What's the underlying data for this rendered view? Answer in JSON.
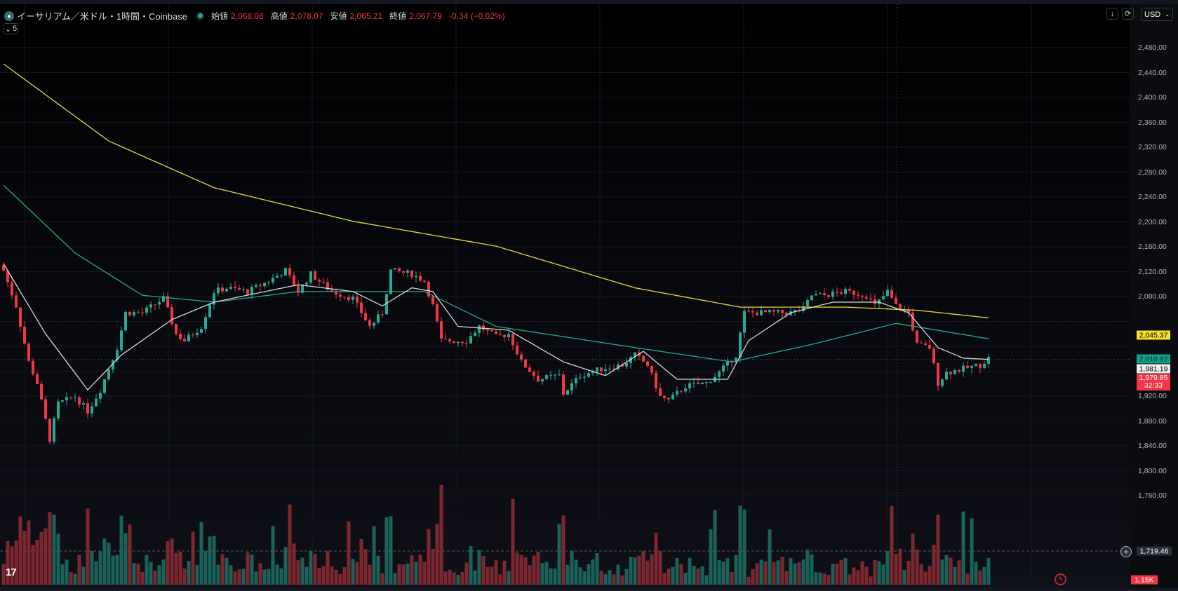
{
  "header": {
    "symbol": "イーサリアム／米ドル・1時間・Coinbase",
    "open_label": "始値",
    "open": "2,068.08",
    "high_label": "高値",
    "high": "2,078.07",
    "low_label": "安値",
    "low": "2,065.21",
    "close_label": "終値",
    "close": "2,067.79",
    "change": "-0.34 (−0.02%)",
    "indicators_count": "5",
    "currency": "USD"
  },
  "axis_ticks": [
    "2,480.00",
    "2,440.00",
    "2,400.00",
    "2,360.00",
    "2,320.00",
    "2,280.00",
    "2,240.00",
    "2,200.00",
    "2,160.00",
    "2,120.00",
    "2,080.00",
    "1,920.00",
    "1,880.00",
    "1,840.00",
    "1,800.00",
    "1,760.00"
  ],
  "price_labels": {
    "ma200": "2,045.37",
    "ma100": "2,010.82",
    "ma20": "1,981.19",
    "last": "1,979.85",
    "countdown": "32:33",
    "crosshair": "1,719.46",
    "volume": "1.15K"
  },
  "colors": {
    "up": "#22ab94",
    "down": "#f23645",
    "ma200": "#e8d83a",
    "ma100": "#1fa89a",
    "ma20": "#d8d8d8"
  },
  "chart_data": {
    "type": "candlestick",
    "title": "ETH/USD 1h Coinbase",
    "ylim": [
      1720,
      2500
    ],
    "bars": 235,
    "close_waypoints": [
      [
        0,
        2122
      ],
      [
        3,
        2065
      ],
      [
        6,
        1975
      ],
      [
        8,
        1941
      ],
      [
        11,
        1851
      ],
      [
        13,
        1908
      ],
      [
        17,
        1919
      ],
      [
        20,
        1896
      ],
      [
        23,
        1930
      ],
      [
        27,
        1998
      ],
      [
        29,
        2054
      ],
      [
        33,
        2054
      ],
      [
        38,
        2077
      ],
      [
        41,
        2020
      ],
      [
        43,
        2009
      ],
      [
        47,
        2032
      ],
      [
        50,
        2088
      ],
      [
        53,
        2094
      ],
      [
        58,
        2088
      ],
      [
        63,
        2105
      ],
      [
        67,
        2122
      ],
      [
        70,
        2088
      ],
      [
        73,
        2116
      ],
      [
        78,
        2088
      ],
      [
        83,
        2077
      ],
      [
        87,
        2032
      ],
      [
        90,
        2054
      ],
      [
        92,
        2122
      ],
      [
        97,
        2116
      ],
      [
        100,
        2105
      ],
      [
        102,
        2065
      ],
      [
        104,
        2009
      ],
      [
        110,
        2009
      ],
      [
        113,
        2032
      ],
      [
        117,
        2015
      ],
      [
        120,
        2020
      ],
      [
        123,
        1975
      ],
      [
        127,
        1947
      ],
      [
        132,
        1953
      ],
      [
        133,
        1924
      ],
      [
        137,
        1953
      ],
      [
        142,
        1964
      ],
      [
        147,
        1970
      ],
      [
        150,
        1986
      ],
      [
        153,
        1970
      ],
      [
        156,
        1919
      ],
      [
        158,
        1913
      ],
      [
        162,
        1936
      ],
      [
        167,
        1941
      ],
      [
        170,
        1958
      ],
      [
        174,
        1986
      ],
      [
        176,
        2054
      ],
      [
        180,
        2054
      ],
      [
        187,
        2054
      ],
      [
        190,
        2060
      ],
      [
        192,
        2082
      ],
      [
        195,
        2082
      ],
      [
        200,
        2088
      ],
      [
        205,
        2082
      ],
      [
        207,
        2065
      ],
      [
        210,
        2088
      ],
      [
        212,
        2065
      ],
      [
        215,
        2054
      ],
      [
        217,
        2003
      ],
      [
        220,
        1998
      ],
      [
        222,
        1941
      ],
      [
        224,
        1958
      ],
      [
        228,
        1964
      ],
      [
        232,
        1970
      ],
      [
        234,
        1981
      ]
    ],
    "ma200_waypoints": [
      [
        0,
        2454
      ],
      [
        25,
        2330
      ],
      [
        50,
        2255
      ],
      [
        83,
        2201
      ],
      [
        117,
        2161
      ],
      [
        150,
        2094
      ],
      [
        175,
        2063
      ],
      [
        200,
        2063
      ],
      [
        217,
        2058
      ],
      [
        235,
        2045
      ]
    ],
    "ma100_waypoints": [
      [
        0,
        2259
      ],
      [
        17,
        2150
      ],
      [
        33,
        2082
      ],
      [
        50,
        2071
      ],
      [
        70,
        2088
      ],
      [
        100,
        2088
      ],
      [
        117,
        2032
      ],
      [
        150,
        1998
      ],
      [
        173,
        1975
      ],
      [
        192,
        2003
      ],
      [
        212,
        2037
      ],
      [
        235,
        2011
      ]
    ],
    "ma20_waypoints": [
      [
        0,
        2133
      ],
      [
        10,
        2020
      ],
      [
        20,
        1930
      ],
      [
        28,
        1986
      ],
      [
        40,
        2043
      ],
      [
        50,
        2071
      ],
      [
        70,
        2099
      ],
      [
        83,
        2088
      ],
      [
        90,
        2065
      ],
      [
        97,
        2094
      ],
      [
        102,
        2088
      ],
      [
        108,
        2032
      ],
      [
        120,
        2026
      ],
      [
        133,
        1975
      ],
      [
        143,
        1953
      ],
      [
        152,
        1992
      ],
      [
        160,
        1947
      ],
      [
        172,
        1947
      ],
      [
        177,
        2009
      ],
      [
        187,
        2054
      ],
      [
        197,
        2071
      ],
      [
        208,
        2071
      ],
      [
        215,
        2054
      ],
      [
        222,
        1998
      ],
      [
        228,
        1981
      ],
      [
        234,
        1979
      ]
    ]
  }
}
